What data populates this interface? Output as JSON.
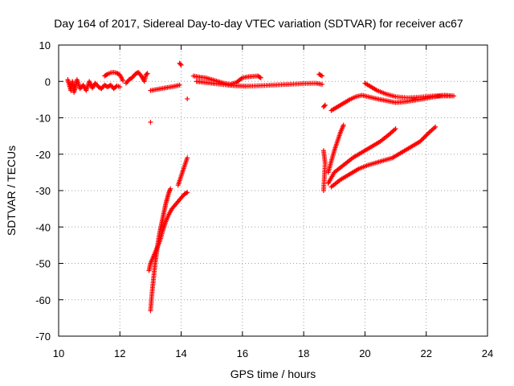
{
  "chart_data": {
    "type": "scatter",
    "title": "Day 164 of 2017, Sidereal Day-to-day VTEC variation (SDTVAR) for receiver ac67",
    "xlabel": "GPS time / hours",
    "ylabel": "SDTVAR / TECUs",
    "xlim": [
      10,
      24
    ],
    "ylim": [
      -70,
      10
    ],
    "x_ticks": [
      10,
      12,
      14,
      16,
      18,
      20,
      22,
      24
    ],
    "y_ticks": [
      10,
      0,
      -10,
      -20,
      -30,
      -40,
      -50,
      -60,
      -70
    ],
    "x_tick_labels": [
      "10",
      "12",
      "14",
      "16",
      "18",
      "20",
      "22",
      "24"
    ],
    "y_tick_labels": [
      "10",
      "0",
      "-10",
      "-20",
      "-30",
      "-40",
      "-50",
      "-60",
      "-70"
    ],
    "grid": true,
    "legend": "none",
    "marker": "+",
    "marker_color": "#ff0000",
    "series": [
      {
        "segments": [
          [
            [
              10.3,
              0.5
            ],
            [
              10.35,
              -1.0
            ],
            [
              10.4,
              -2.5
            ],
            [
              10.45,
              0.0
            ],
            [
              10.5,
              -3.0
            ],
            [
              10.55,
              -1.5
            ],
            [
              10.6,
              0.5
            ],
            [
              10.7,
              -2.0
            ],
            [
              10.8,
              -1.0
            ],
            [
              10.9,
              -2.5
            ],
            [
              11.0,
              0.0
            ],
            [
              11.1,
              -1.8
            ],
            [
              11.2,
              -0.5
            ],
            [
              11.3,
              -1.5
            ],
            [
              11.4,
              -2.0
            ],
            [
              11.5,
              -1.0
            ],
            [
              11.6,
              -1.5
            ],
            [
              11.7,
              -1.0
            ],
            [
              11.8,
              -2.0
            ],
            [
              11.9,
              -1.2
            ],
            [
              12.0,
              -1.5
            ]
          ],
          [
            [
              11.5,
              1.5
            ],
            [
              11.6,
              2.0
            ],
            [
              11.7,
              2.4
            ],
            [
              11.8,
              2.5
            ],
            [
              11.9,
              2.3
            ],
            [
              12.0,
              1.8
            ],
            [
              12.05,
              1.0
            ],
            [
              12.1,
              0.2
            ]
          ],
          [
            [
              12.2,
              -0.5
            ],
            [
              12.3,
              0.5
            ],
            [
              12.4,
              1.0
            ],
            [
              12.5,
              2.0
            ],
            [
              12.6,
              2.5
            ],
            [
              12.7,
              1.5
            ],
            [
              12.8,
              0.0
            ],
            [
              12.85,
              1.8
            ],
            [
              12.9,
              2.2
            ]
          ],
          [
            [
              13.0,
              -2.5
            ],
            [
              13.2,
              -2.2
            ],
            [
              13.4,
              -1.9
            ],
            [
              13.6,
              -1.6
            ],
            [
              13.8,
              -1.3
            ],
            [
              13.95,
              -1.0
            ]
          ],
          [
            [
              13.95,
              5.0
            ],
            [
              14.0,
              4.5
            ]
          ],
          [
            [
              13.0,
              -11.2
            ]
          ],
          [
            [
              14.2,
              -4.8
            ]
          ],
          [
            [
              14.4,
              1.5
            ],
            [
              14.6,
              1.2
            ],
            [
              14.8,
              1.0
            ],
            [
              15.0,
              0.5
            ],
            [
              15.2,
              0.0
            ],
            [
              15.4,
              -0.5
            ],
            [
              15.6,
              -0.8
            ],
            [
              15.8,
              -0.3
            ],
            [
              16.0,
              1.0
            ],
            [
              16.2,
              1.3
            ],
            [
              16.5,
              1.5
            ],
            [
              16.6,
              1.0
            ]
          ],
          [
            [
              14.5,
              0.0
            ],
            [
              14.8,
              -0.3
            ],
            [
              15.1,
              -0.6
            ],
            [
              15.5,
              -1.0
            ],
            [
              15.8,
              -1.2
            ],
            [
              16.1,
              -1.3
            ],
            [
              16.5,
              -1.2
            ],
            [
              17.0,
              -1.0
            ],
            [
              17.5,
              -0.8
            ],
            [
              18.0,
              -0.6
            ],
            [
              18.4,
              -0.5
            ],
            [
              18.6,
              -0.8
            ]
          ],
          [
            [
              18.5,
              2.0
            ],
            [
              18.6,
              1.5
            ]
          ],
          [
            [
              18.65,
              -7.0
            ],
            [
              18.7,
              -6.5
            ]
          ],
          [
            [
              18.9,
              -8.0
            ],
            [
              19.1,
              -7.0
            ],
            [
              19.3,
              -6.0
            ],
            [
              19.5,
              -5.0
            ],
            [
              19.7,
              -4.2
            ],
            [
              19.9,
              -3.8
            ],
            [
              20.1,
              -4.2
            ],
            [
              20.4,
              -4.8
            ],
            [
              20.7,
              -5.3
            ],
            [
              21.0,
              -5.8
            ],
            [
              21.3,
              -5.6
            ],
            [
              21.6,
              -5.2
            ],
            [
              21.9,
              -4.8
            ],
            [
              22.2,
              -4.3
            ],
            [
              22.5,
              -4.0
            ],
            [
              22.8,
              -4.0
            ]
          ],
          [
            [
              20.0,
              -0.5
            ],
            [
              20.2,
              -1.5
            ],
            [
              20.4,
              -2.5
            ],
            [
              20.7,
              -3.5
            ],
            [
              21.0,
              -4.2
            ],
            [
              21.4,
              -4.5
            ],
            [
              21.8,
              -4.3
            ],
            [
              22.2,
              -4.0
            ],
            [
              22.6,
              -3.8
            ],
            [
              22.9,
              -4.0
            ]
          ],
          [
            [
              18.65,
              -19.0
            ],
            [
              18.7,
              -22.5
            ],
            [
              18.65,
              -30.0
            ]
          ],
          [
            [
              18.8,
              -25.0
            ],
            [
              18.9,
              -22.0
            ],
            [
              19.0,
              -19.0
            ],
            [
              19.1,
              -16.5
            ],
            [
              19.2,
              -14.0
            ],
            [
              19.3,
              -12.0
            ]
          ],
          [
            [
              18.8,
              -28.0
            ],
            [
              19.0,
              -25.0
            ],
            [
              19.3,
              -23.0
            ],
            [
              19.6,
              -21.0
            ],
            [
              19.9,
              -19.5
            ],
            [
              20.2,
              -18.0
            ],
            [
              20.5,
              -16.5
            ],
            [
              20.8,
              -14.5
            ],
            [
              21.0,
              -13.0
            ]
          ],
          [
            [
              18.9,
              -29.0
            ],
            [
              19.2,
              -27.0
            ],
            [
              19.5,
              -25.5
            ],
            [
              19.8,
              -24.0
            ],
            [
              20.1,
              -23.0
            ],
            [
              20.5,
              -22.0
            ],
            [
              20.9,
              -21.0
            ],
            [
              21.2,
              -19.5
            ],
            [
              21.5,
              -18.0
            ],
            [
              21.8,
              -16.5
            ],
            [
              22.1,
              -14.0
            ],
            [
              22.3,
              -12.5
            ]
          ],
          [
            [
              13.0,
              -63.0
            ],
            [
              13.05,
              -58.0
            ],
            [
              13.1,
              -54.0
            ],
            [
              13.15,
              -50.0
            ],
            [
              13.2,
              -47.0
            ],
            [
              13.25,
              -44.0
            ],
            [
              13.3,
              -41.5
            ],
            [
              13.35,
              -39.5
            ],
            [
              13.4,
              -37.5
            ],
            [
              13.45,
              -35.5
            ],
            [
              13.5,
              -33.5
            ],
            [
              13.55,
              -32.0
            ],
            [
              13.6,
              -30.5
            ],
            [
              13.65,
              -29.5
            ]
          ],
          [
            [
              12.95,
              -52.0
            ],
            [
              13.0,
              -50.0
            ],
            [
              13.1,
              -48.0
            ],
            [
              13.2,
              -46.0
            ],
            [
              13.3,
              -44.0
            ],
            [
              13.4,
              -41.0
            ],
            [
              13.5,
              -38.5
            ],
            [
              13.6,
              -36.5
            ],
            [
              13.7,
              -35.0
            ],
            [
              13.8,
              -34.0
            ],
            [
              13.9,
              -33.0
            ],
            [
              14.0,
              -32.0
            ],
            [
              14.1,
              -31.0
            ],
            [
              14.2,
              -30.5
            ]
          ],
          [
            [
              13.9,
              -28.5
            ],
            [
              14.0,
              -26.0
            ],
            [
              14.1,
              -23.5
            ],
            [
              14.2,
              -21.0
            ]
          ]
        ]
      }
    ]
  }
}
